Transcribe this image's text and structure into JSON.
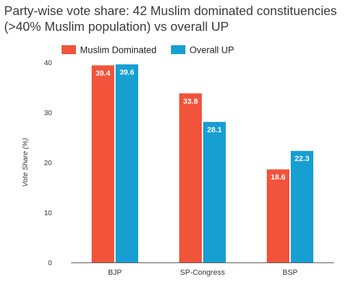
{
  "chart_data": {
    "type": "bar",
    "title": "Party-wise vote share: 42 Muslim dominated constituencies (>40% Muslim population) vs overall UP",
    "xlabel": "",
    "ylabel": "Vote Share (%)",
    "categories": [
      "BJP",
      "SP-Congress",
      "BSP"
    ],
    "series": [
      {
        "name": "Muslim Dominated",
        "values": [
          39.4,
          33.8,
          18.6
        ],
        "color": "#f1533b"
      },
      {
        "name": "Overall UP",
        "values": [
          39.6,
          28.1,
          22.3
        ],
        "color": "#179fd1"
      }
    ],
    "ylim": [
      0,
      40
    ],
    "yticks": [
      0,
      10,
      20,
      30,
      40
    ],
    "legend": "top-left",
    "grid": false
  }
}
